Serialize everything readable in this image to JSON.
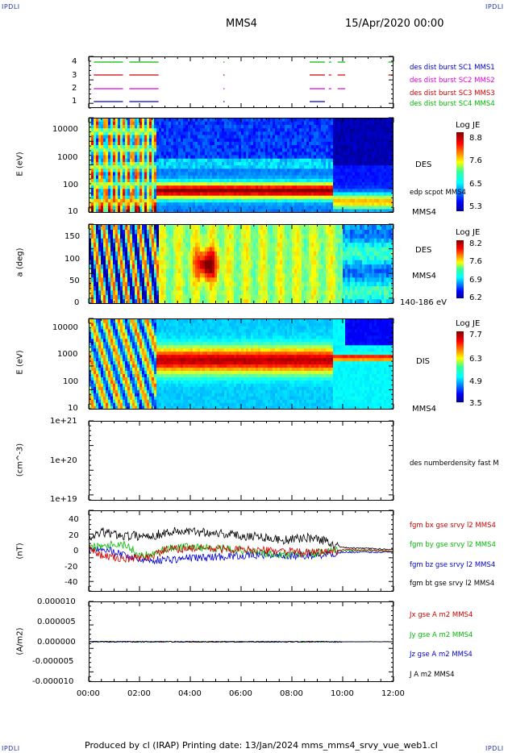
{
  "corners": {
    "tl": "IPDLI",
    "tr": "IPDLI",
    "bl": "IPDLI",
    "br": "IPDLI"
  },
  "header": {
    "spacecraft": "MMS4",
    "date": "15/Apr/2020 00:00"
  },
  "colors": {
    "blue": "#0000cc",
    "magenta": "#dd00dd",
    "red": "#cc0000",
    "green": "#00bb00",
    "black": "#000000"
  },
  "panels": {
    "burst": {
      "yticks": [
        "4",
        "3",
        "2",
        "1"
      ],
      "legend": [
        {
          "text": "des dist burst SC1 MMS1",
          "color": "#0000cc"
        },
        {
          "text": "des dist burst SC2 MMS2",
          "color": "#dd00dd"
        },
        {
          "text": "des dist burst SC3 MMS3",
          "color": "#cc0000"
        },
        {
          "text": "des dist burst SC4 MMS4",
          "color": "#00bb00"
        }
      ]
    },
    "des_energy": {
      "ylabel": "E (eV)",
      "yticks": [
        "10000",
        "1000",
        "100",
        "10"
      ],
      "side": [
        "DES",
        "edp scpot MMS4",
        "MMS4"
      ],
      "cb_title": "Log JE",
      "cb_ticks": [
        "8.8",
        "7.6",
        "6.5",
        "5.3"
      ]
    },
    "des_pitch": {
      "ylabel": "a (deg)",
      "yticks": [
        "150",
        "100",
        "50",
        "0"
      ],
      "side": [
        "DES",
        "MMS4",
        "140-186 eV"
      ],
      "cb_title": "Log JE",
      "cb_ticks": [
        "8.2",
        "7.6",
        "6.9",
        "6.2"
      ]
    },
    "dis_energy": {
      "ylabel": "E (eV)",
      "yticks": [
        "10000",
        "1000",
        "100",
        "10"
      ],
      "side": [
        "DIS",
        "MMS4"
      ],
      "cb_title": "Log JE",
      "cb_ticks": [
        "7.7",
        "6.3",
        "4.9",
        "3.5"
      ]
    },
    "density": {
      "ylabel": "(cm^-3)",
      "yticks": [
        "1e+21",
        "1e+20",
        "1e+19"
      ],
      "legend": [
        {
          "text": "des numberdensity fast M",
          "color": "#000000"
        }
      ]
    },
    "bfield": {
      "ylabel": "(nT)",
      "yticks": [
        "40",
        "20",
        "0",
        "-20",
        "-40"
      ],
      "legend": [
        {
          "text": "fgm bx gse srvy l2 MMS4",
          "color": "#cc0000"
        },
        {
          "text": "fgm by gse srvy l2 MMS4",
          "color": "#00bb00"
        },
        {
          "text": "fgm bz gse srvy l2 MMS4",
          "color": "#0000cc"
        },
        {
          "text": "fgm bt gse srvy l2 MMS4",
          "color": "#000000"
        }
      ]
    },
    "current": {
      "ylabel": "(A/m2)",
      "yticks": [
        "0.000010",
        "0.000005",
        "0.000000",
        "-0.000005",
        "-0.000010"
      ],
      "legend": [
        {
          "text": "Jx gse A m2 MMS4",
          "color": "#cc0000"
        },
        {
          "text": "Jy gse A m2 MMS4",
          "color": "#00bb00"
        },
        {
          "text": "Jz gse A m2 MMS4",
          "color": "#0000cc"
        },
        {
          "text": "J A m2 MMS4",
          "color": "#000000"
        }
      ]
    }
  },
  "xticks": [
    "00:00",
    "02:00",
    "04:00",
    "06:00",
    "08:00",
    "10:00",
    "12:00"
  ],
  "footer": {
    "text": "Produced by cl (IRAP)   Printing date: 13/Jan/2024   mms_mms4_srvy_vue_web1.cl"
  },
  "chart_data": [
    {
      "type": "line",
      "title": "des dist burst availability",
      "x_range": [
        "00:00",
        "12:00"
      ],
      "ylim": [
        0.5,
        4.5
      ],
      "series": [
        {
          "name": "des dist burst SC1 MMS1",
          "y": 1,
          "intervals_h": [
            [
              0.2,
              1.35
            ],
            [
              1.6,
              2.75
            ],
            [
              5.3,
              5.35
            ],
            [
              8.7,
              9.3
            ]
          ]
        },
        {
          "name": "des dist burst SC2 MMS2",
          "y": 2,
          "intervals_h": [
            [
              0.2,
              1.35
            ],
            [
              1.6,
              2.75
            ],
            [
              5.3,
              5.35
            ],
            [
              8.7,
              9.3
            ],
            [
              9.45,
              9.55
            ],
            [
              9.8,
              10.1
            ]
          ]
        },
        {
          "name": "des dist burst SC3 MMS3",
          "y": 3,
          "intervals_h": [
            [
              0.2,
              1.35
            ],
            [
              1.6,
              2.75
            ],
            [
              5.3,
              5.35
            ],
            [
              8.7,
              9.3
            ],
            [
              9.45,
              9.55
            ],
            [
              9.8,
              10.1
            ],
            [
              11.8,
              12.0
            ]
          ]
        },
        {
          "name": "des dist burst SC4 MMS4",
          "y": 4,
          "intervals_h": [
            [
              0.2,
              1.35
            ],
            [
              1.6,
              2.75
            ],
            [
              5.3,
              5.35
            ],
            [
              8.7,
              9.3
            ],
            [
              9.45,
              9.55
            ],
            [
              9.8,
              10.1
            ],
            [
              11.8,
              12.0
            ]
          ]
        }
      ]
    },
    {
      "type": "heatmap",
      "title": "DES",
      "ylabel": "E (eV)",
      "y_scale": "log",
      "ylim": [
        10,
        30000
      ],
      "colorbar": {
        "label": "Log JE",
        "range": [
          5.3,
          8.8
        ]
      },
      "features": [
        {
          "t_h": [
            2.6,
            9.5
          ],
          "E_eV": [
            40,
            100
          ],
          "logJE": 8.6
        },
        {
          "t_h": [
            0.0,
            2.6
          ],
          "E_eV": [
            10,
            30000
          ],
          "logJE": 7.2
        },
        {
          "t_h": [
            10.0,
            12.0
          ],
          "E_eV": [
            600,
            10000
          ],
          "logJE": 5.4
        }
      ]
    },
    {
      "type": "heatmap",
      "title": "DES 140-186 eV",
      "ylabel": "a (deg)",
      "ylim": [
        0,
        180
      ],
      "colorbar": {
        "label": "Log JE",
        "range": [
          6.2,
          8.2
        ]
      },
      "features": [
        {
          "t_h": [
            3.9,
            5.2
          ],
          "pitch_deg": [
            40,
            130
          ],
          "logJE": 8.2
        },
        {
          "t_h": [
            0.5,
            2.6
          ],
          "pitch_deg": [
            0,
            180
          ],
          "logJE": 6.9
        },
        {
          "t_h": [
            10.0,
            12.0
          ],
          "pitch_deg": [
            0,
            180
          ],
          "logJE": 6.5
        }
      ]
    },
    {
      "type": "heatmap",
      "title": "DIS",
      "ylabel": "E (eV)",
      "y_scale": "log",
      "ylim": [
        10,
        30000
      ],
      "colorbar": {
        "label": "Log JE",
        "range": [
          3.5,
          7.7
        ]
      },
      "features": [
        {
          "t_h": [
            2.6,
            9.5
          ],
          "E_eV": [
            300,
            3000
          ],
          "logJE": 7.6
        },
        {
          "t_h": [
            9.5,
            12.0
          ],
          "E_eV": [
            700,
            1300
          ],
          "logJE": 7.7
        },
        {
          "t_h": [
            10.0,
            12.0
          ],
          "E_eV": [
            3000,
            20000
          ],
          "logJE": 3.8
        }
      ]
    },
    {
      "type": "line",
      "title": "",
      "ylabel": "(cm^-3)",
      "y_scale": "log",
      "ylim": [
        1e+19,
        1e+21
      ],
      "series": [
        {
          "name": "des numberdensity fast M",
          "x_h": [],
          "y": []
        }
      ]
    },
    {
      "type": "line",
      "ylabel": "(nT)",
      "ylim": [
        -50,
        50
      ],
      "x_h": [
        0,
        0.5,
        1.0,
        1.5,
        2.0,
        2.5,
        3.0,
        3.5,
        4.0,
        4.5,
        5.0,
        5.5,
        6.0,
        6.5,
        7.0,
        7.5,
        8.0,
        8.5,
        9.0,
        9.5,
        10.0,
        10.5,
        11.0,
        11.5,
        12.0
      ],
      "series": [
        {
          "name": "fgm bx gse srvy l2 MMS4",
          "values": [
            5,
            -5,
            -8,
            -10,
            -8,
            -6,
            2,
            3,
            4,
            4,
            3,
            3,
            2,
            2,
            1,
            1,
            0,
            -2,
            -1,
            0,
            2,
            2,
            2,
            1,
            0
          ]
        },
        {
          "name": "fgm by gse srvy l2 MMS4",
          "values": [
            5,
            8,
            10,
            8,
            -5,
            -3,
            3,
            5,
            6,
            5,
            4,
            3,
            2,
            0,
            -3,
            -5,
            -5,
            -3,
            -2,
            0,
            1,
            1,
            1,
            1,
            0
          ]
        },
        {
          "name": "fgm bz gse srvy l2 MMS4",
          "values": [
            2,
            5,
            0,
            -5,
            -10,
            -12,
            -10,
            -10,
            -8,
            -8,
            -7,
            -6,
            -5,
            -5,
            -4,
            -5,
            -6,
            -5,
            -5,
            -3,
            -1,
            -1,
            -1,
            -1,
            0
          ]
        },
        {
          "name": "fgm bt gse srvy l2 MMS4",
          "values": [
            15,
            25,
            22,
            20,
            20,
            20,
            24,
            26,
            25,
            25,
            24,
            22,
            20,
            20,
            18,
            15,
            15,
            18,
            16,
            12,
            5,
            4,
            4,
            3,
            3
          ]
        }
      ]
    },
    {
      "type": "line",
      "ylabel": "(A/m2)",
      "ylim": [
        -1e-05,
        1e-05
      ],
      "x_h": [
        0,
        2,
        4,
        6,
        8,
        10,
        12
      ],
      "series": [
        {
          "name": "Jx gse A m2 MMS4",
          "values": [
            0,
            0,
            0,
            0,
            0,
            0,
            0
          ]
        },
        {
          "name": "Jy gse A m2 MMS4",
          "values": [
            0,
            0,
            0,
            0,
            0,
            0,
            0
          ]
        },
        {
          "name": "Jz gse A m2 MMS4",
          "values": [
            0,
            0,
            0,
            0,
            0,
            0,
            0
          ]
        },
        {
          "name": "J A m2 MMS4",
          "values": [
            0,
            0,
            0,
            0,
            0,
            0,
            0
          ]
        }
      ]
    }
  ]
}
